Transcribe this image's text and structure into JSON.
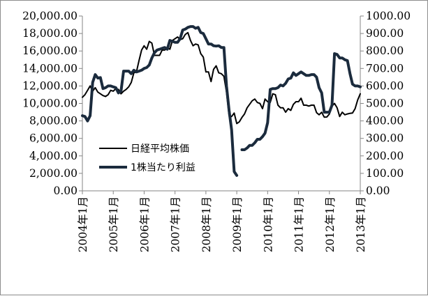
{
  "chart_data": {
    "type": "line",
    "title": "",
    "xlabel": "",
    "y_left": {
      "ylim": [
        0,
        20000
      ],
      "ticks": [
        "0.00",
        "2,000.00",
        "4,000.00",
        "6,000.00",
        "8,000.00",
        "10,000.00",
        "12,000.00",
        "14,000.00",
        "16,000.00",
        "18,000.00",
        "20,000.00"
      ]
    },
    "y_right": {
      "ylim": [
        0,
        1000
      ],
      "ticks": [
        "0.00",
        "100.00",
        "200.00",
        "300.00",
        "400.00",
        "500.00",
        "600.00",
        "700.00",
        "800.00",
        "900.00",
        "1000.00"
      ]
    },
    "x_ticks": [
      "2004年1月",
      "2005年1月",
      "2006年1月",
      "2007年1月",
      "2008年1月",
      "2009年1月",
      "2010年1月",
      "2011年1月",
      "2012年1月",
      "2013年1月"
    ],
    "grid": false,
    "legend_placement": "middle-left",
    "series": [
      {
        "name": "日経平均株価",
        "axis": "left",
        "color": "#000000",
        "points": [
          [
            "2004-01",
            10700
          ],
          [
            "2004-02",
            11000
          ],
          [
            "2004-03",
            11500
          ],
          [
            "2004-04",
            12000
          ],
          [
            "2004-05",
            11400
          ],
          [
            "2004-06",
            11800
          ],
          [
            "2004-07",
            11300
          ],
          [
            "2004-08",
            11100
          ],
          [
            "2004-09",
            10900
          ],
          [
            "2004-10",
            10800
          ],
          [
            "2004-11",
            11000
          ],
          [
            "2004-12",
            11500
          ],
          [
            "2005-01",
            11400
          ],
          [
            "2005-02",
            11700
          ],
          [
            "2005-03",
            11600
          ],
          [
            "2005-04",
            11100
          ],
          [
            "2005-05",
            11400
          ],
          [
            "2005-06",
            11600
          ],
          [
            "2005-07",
            11900
          ],
          [
            "2005-08",
            12400
          ],
          [
            "2005-09",
            13500
          ],
          [
            "2005-10",
            13600
          ],
          [
            "2005-11",
            14900
          ],
          [
            "2005-12",
            16100
          ],
          [
            "2006-01",
            16600
          ],
          [
            "2006-02",
            16200
          ],
          [
            "2006-03",
            17100
          ],
          [
            "2006-04",
            16900
          ],
          [
            "2006-05",
            15500
          ],
          [
            "2006-06",
            15500
          ],
          [
            "2006-07",
            15500
          ],
          [
            "2006-08",
            16100
          ],
          [
            "2006-09",
            16100
          ],
          [
            "2006-10",
            16400
          ],
          [
            "2006-11",
            16200
          ],
          [
            "2006-12",
            17200
          ],
          [
            "2007-01",
            17400
          ],
          [
            "2007-02",
            17600
          ],
          [
            "2007-03",
            17300
          ],
          [
            "2007-04",
            17400
          ],
          [
            "2007-05",
            17900
          ],
          [
            "2007-06",
            18100
          ],
          [
            "2007-07",
            17200
          ],
          [
            "2007-08",
            16600
          ],
          [
            "2007-09",
            16800
          ],
          [
            "2007-10",
            16700
          ],
          [
            "2007-11",
            15700
          ],
          [
            "2007-12",
            15300
          ],
          [
            "2008-01",
            13600
          ],
          [
            "2008-02",
            13600
          ],
          [
            "2008-03",
            12500
          ],
          [
            "2008-04",
            13900
          ],
          [
            "2008-05",
            14300
          ],
          [
            "2008-06",
            13500
          ],
          [
            "2008-07",
            13400
          ],
          [
            "2008-08",
            13100
          ],
          [
            "2008-09",
            11300
          ],
          [
            "2008-10",
            8600
          ],
          [
            "2008-11",
            8500
          ],
          [
            "2008-12",
            8900
          ],
          [
            "2009-01",
            7700
          ],
          [
            "2009-02",
            7900
          ],
          [
            "2009-03",
            8400
          ],
          [
            "2009-04",
            8800
          ],
          [
            "2009-05",
            9500
          ],
          [
            "2009-06",
            9900
          ],
          [
            "2009-07",
            10300
          ],
          [
            "2009-08",
            10500
          ],
          [
            "2009-09",
            10100
          ],
          [
            "2009-10",
            10000
          ],
          [
            "2009-11",
            9400
          ],
          [
            "2009-12",
            10500
          ],
          [
            "2010-01",
            10200
          ],
          [
            "2010-02",
            10100
          ],
          [
            "2010-03",
            11100
          ],
          [
            "2010-04",
            11000
          ],
          [
            "2010-05",
            9800
          ],
          [
            "2010-06",
            9500
          ],
          [
            "2010-07",
            9500
          ],
          [
            "2010-08",
            9000
          ],
          [
            "2010-09",
            9400
          ],
          [
            "2010-10",
            9200
          ],
          [
            "2010-11",
            9900
          ],
          [
            "2010-12",
            10200
          ],
          [
            "2011-01",
            10200
          ],
          [
            "2011-02",
            10600
          ],
          [
            "2011-03",
            9800
          ],
          [
            "2011-04",
            9800
          ],
          [
            "2011-05",
            9700
          ],
          [
            "2011-06",
            9800
          ],
          [
            "2011-07",
            9800
          ],
          [
            "2011-08",
            8950
          ],
          [
            "2011-09",
            8700
          ],
          [
            "2011-10",
            8990
          ],
          [
            "2011-11",
            8430
          ],
          [
            "2011-12",
            8450
          ],
          [
            "2012-01",
            8800
          ],
          [
            "2012-02",
            9700
          ],
          [
            "2012-03",
            10000
          ],
          [
            "2012-04",
            9500
          ],
          [
            "2012-05",
            8500
          ],
          [
            "2012-06",
            9000
          ],
          [
            "2012-07",
            8700
          ],
          [
            "2012-08",
            8800
          ],
          [
            "2012-09",
            8870
          ],
          [
            "2012-10",
            8900
          ],
          [
            "2012-11",
            9400
          ],
          [
            "2012-12",
            10400
          ],
          [
            "2013-01",
            11100
          ]
        ]
      },
      {
        "name": "1株当たり利益",
        "axis": "right",
        "color": "#1b2b3d",
        "points": [
          [
            "2004-01",
            430
          ],
          [
            "2004-02",
            425
          ],
          [
            "2004-03",
            400
          ],
          [
            "2004-04",
            430
          ],
          [
            "2004-05",
            620
          ],
          [
            "2004-06",
            665
          ],
          [
            "2004-07",
            645
          ],
          [
            "2004-08",
            648
          ],
          [
            "2004-09",
            585
          ],
          [
            "2004-10",
            590
          ],
          [
            "2004-11",
            600
          ],
          [
            "2004-12",
            600
          ],
          [
            "2005-01",
            595
          ],
          [
            "2005-02",
            590
          ],
          [
            "2005-03",
            560
          ],
          [
            "2005-04",
            570
          ],
          [
            "2005-05",
            685
          ],
          [
            "2005-06",
            685
          ],
          [
            "2005-07",
            685
          ],
          [
            "2005-08",
            670
          ],
          [
            "2005-09",
            690
          ],
          [
            "2005-10",
            680
          ],
          [
            "2005-11",
            685
          ],
          [
            "2005-12",
            690
          ],
          [
            "2006-01",
            700
          ],
          [
            "2006-02",
            705
          ],
          [
            "2006-03",
            720
          ],
          [
            "2006-04",
            760
          ],
          [
            "2006-05",
            790
          ],
          [
            "2006-06",
            805
          ],
          [
            "2006-07",
            810
          ],
          [
            "2006-08",
            815
          ],
          [
            "2006-09",
            820
          ],
          [
            "2006-10",
            810
          ],
          [
            "2006-11",
            860
          ],
          [
            "2006-12",
            855
          ],
          [
            "2007-01",
            850
          ],
          [
            "2007-02",
            850
          ],
          [
            "2007-03",
            870
          ],
          [
            "2007-04",
            920
          ],
          [
            "2007-05",
            925
          ],
          [
            "2007-06",
            935
          ],
          [
            "2007-07",
            940
          ],
          [
            "2007-08",
            940
          ],
          [
            "2007-09",
            930
          ],
          [
            "2007-10",
            935
          ],
          [
            "2007-11",
            905
          ],
          [
            "2007-12",
            900
          ],
          [
            "2008-01",
            870
          ],
          [
            "2008-02",
            840
          ],
          [
            "2008-03",
            840
          ],
          [
            "2008-04",
            830
          ],
          [
            "2008-05",
            828
          ],
          [
            "2008-06",
            830
          ],
          [
            "2008-07",
            820
          ],
          [
            "2008-08",
            820
          ],
          [
            "2008-09",
            600
          ],
          [
            "2008-10",
            460
          ],
          [
            "2008-11",
            350
          ],
          [
            "2008-12",
            110
          ],
          [
            "2009-01",
            88
          ],
          null,
          [
            "2009-03",
            235
          ],
          [
            "2009-04",
            235
          ],
          [
            "2009-05",
            245
          ],
          [
            "2009-06",
            260
          ],
          [
            "2009-07",
            260
          ],
          [
            "2009-08",
            275
          ],
          [
            "2009-09",
            295
          ],
          [
            "2009-10",
            295
          ],
          [
            "2009-11",
            310
          ],
          [
            "2009-12",
            330
          ],
          [
            "2010-01",
            390
          ],
          [
            "2010-02",
            580
          ],
          [
            "2010-03",
            585
          ],
          [
            "2010-04",
            585
          ],
          [
            "2010-05",
            590
          ],
          [
            "2010-06",
            605
          ],
          [
            "2010-07",
            600
          ],
          [
            "2010-08",
            615
          ],
          [
            "2010-09",
            640
          ],
          [
            "2010-10",
            645
          ],
          [
            "2010-11",
            675
          ],
          [
            "2010-12",
            660
          ],
          [
            "2011-01",
            670
          ],
          [
            "2011-02",
            680
          ],
          [
            "2011-03",
            670
          ],
          [
            "2011-04",
            660
          ],
          [
            "2011-05",
            660
          ],
          [
            "2011-06",
            665
          ],
          [
            "2011-07",
            665
          ],
          [
            "2011-08",
            650
          ],
          [
            "2011-09",
            590
          ],
          [
            "2011-10",
            560
          ],
          [
            "2011-11",
            450
          ],
          [
            "2011-12",
            450
          ],
          [
            "2012-01",
            450
          ],
          [
            "2012-02",
            490
          ],
          [
            "2012-03",
            785
          ],
          [
            "2012-04",
            780
          ],
          [
            "2012-05",
            760
          ],
          [
            "2012-06",
            760
          ],
          [
            "2012-07",
            750
          ],
          [
            "2012-08",
            745
          ],
          [
            "2012-09",
            670
          ],
          [
            "2012-10",
            610
          ],
          [
            "2012-11",
            600
          ],
          [
            "2012-12",
            600
          ],
          [
            "2013-01",
            595
          ]
        ]
      }
    ]
  }
}
